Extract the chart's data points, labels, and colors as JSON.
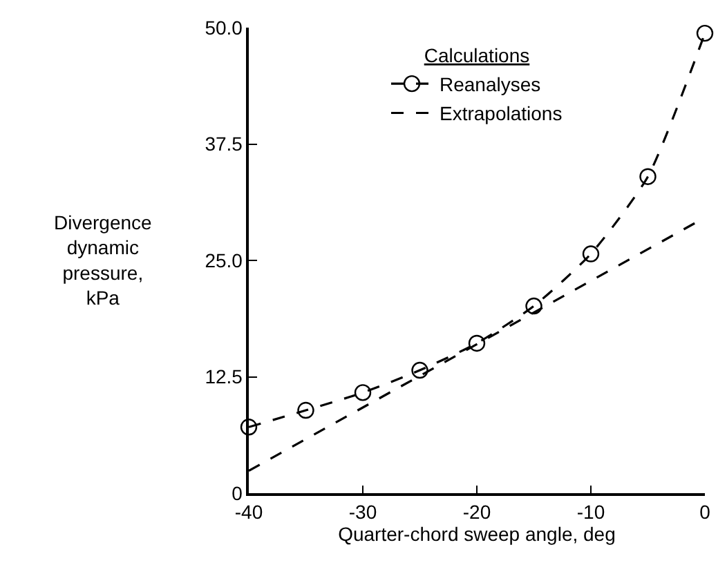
{
  "chart_data": {
    "type": "line",
    "xlabel": "Quarter-chord sweep angle, deg",
    "ylabel": "Divergence\ndynamic\npressure,\nkPa",
    "legend_title": "Calculations",
    "x": [
      -40,
      -35,
      -30,
      -25,
      -20,
      -15,
      -10,
      -5,
      0
    ],
    "series": [
      {
        "name": "Reanalyses",
        "color": "#000000",
        "marker": "circle",
        "line_style": "dashed",
        "values": [
          7.1,
          8.9,
          10.8,
          13.2,
          16.1,
          20.1,
          25.7,
          34.0,
          49.4
        ]
      },
      {
        "name": "Extrapolations",
        "color": "#000000",
        "marker": "none",
        "line_style": "dashed",
        "x": [
          -40,
          0
        ],
        "values": [
          2.4,
          29.6
        ]
      }
    ],
    "xlim": [
      -40,
      0
    ],
    "xticks": [
      -40,
      -30,
      -20,
      -10,
      0
    ],
    "ylim": [
      0,
      50
    ],
    "yticks": [
      0,
      12.5,
      {
        "value": 25,
        "label": "25.0"
      },
      37.5,
      {
        "value": 50,
        "label": "50.0"
      }
    ],
    "legend": "top"
  }
}
